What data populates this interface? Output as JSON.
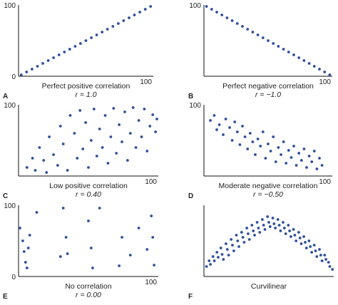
{
  "chart_data": [
    {
      "type": "scatter",
      "letter": "A",
      "caption": "Perfect positive correlation",
      "r_text": "r = 1.0",
      "ticks": {
        "x0": "0",
        "xmax": "100",
        "ymax": "100"
      },
      "xlim": [
        0,
        100
      ],
      "ylim": [
        0,
        100
      ],
      "points": [
        [
          2,
          2
        ],
        [
          6,
          6
        ],
        [
          10,
          10
        ],
        [
          14,
          14
        ],
        [
          18,
          18
        ],
        [
          22,
          22
        ],
        [
          26,
          26
        ],
        [
          30,
          30
        ],
        [
          34,
          34
        ],
        [
          38,
          38
        ],
        [
          42,
          42
        ],
        [
          46,
          46
        ],
        [
          50,
          50
        ],
        [
          54,
          54
        ],
        [
          58,
          58
        ],
        [
          62,
          62
        ],
        [
          66,
          66
        ],
        [
          70,
          70
        ],
        [
          74,
          74
        ],
        [
          78,
          78
        ],
        [
          82,
          82
        ],
        [
          86,
          86
        ],
        [
          90,
          90
        ],
        [
          94,
          94
        ],
        [
          98,
          98
        ]
      ]
    },
    {
      "type": "scatter",
      "letter": "B",
      "caption": "Perfect negative correlation",
      "r_text": "r = −1.0",
      "ticks": {
        "x0": "",
        "xmax": "100",
        "ymax": "100"
      },
      "xlim": [
        0,
        100
      ],
      "ylim": [
        0,
        100
      ],
      "points": [
        [
          2,
          98
        ],
        [
          6,
          94
        ],
        [
          10,
          90
        ],
        [
          14,
          86
        ],
        [
          18,
          82
        ],
        [
          22,
          78
        ],
        [
          26,
          74
        ],
        [
          30,
          70
        ],
        [
          34,
          66
        ],
        [
          38,
          62
        ],
        [
          42,
          58
        ],
        [
          46,
          54
        ],
        [
          50,
          50
        ],
        [
          54,
          46
        ],
        [
          58,
          42
        ],
        [
          62,
          38
        ],
        [
          66,
          34
        ],
        [
          70,
          30
        ],
        [
          74,
          26
        ],
        [
          78,
          22
        ],
        [
          82,
          18
        ],
        [
          86,
          14
        ],
        [
          90,
          10
        ],
        [
          94,
          6
        ],
        [
          98,
          2
        ]
      ]
    },
    {
      "type": "scatter",
      "letter": "C",
      "caption": "Low positive correlation",
      "r_text": "r = 0.40",
      "ticks": {
        "x0": "",
        "xmax": "100",
        "ymax": "100"
      },
      "xlim": [
        0,
        100
      ],
      "ylim": [
        0,
        100
      ],
      "points": [
        [
          6,
          12
        ],
        [
          10,
          25
        ],
        [
          12,
          8
        ],
        [
          15,
          40
        ],
        [
          18,
          22
        ],
        [
          20,
          5
        ],
        [
          22,
          55
        ],
        [
          25,
          30
        ],
        [
          28,
          15
        ],
        [
          30,
          70
        ],
        [
          32,
          45
        ],
        [
          35,
          8
        ],
        [
          37,
          85
        ],
        [
          40,
          60
        ],
        [
          42,
          25
        ],
        [
          44,
          92
        ],
        [
          46,
          38
        ],
        [
          48,
          75
        ],
        [
          50,
          12
        ],
        [
          52,
          50
        ],
        [
          54,
          94
        ],
        [
          56,
          28
        ],
        [
          58,
          66
        ],
        [
          60,
          40
        ],
        [
          62,
          85
        ],
        [
          64,
          18
        ],
        [
          66,
          55
        ],
        [
          68,
          95
        ],
        [
          70,
          32
        ],
        [
          72,
          72
        ],
        [
          74,
          48
        ],
        [
          76,
          90
        ],
        [
          78,
          22
        ],
        [
          80,
          60
        ],
        [
          82,
          96
        ],
        [
          84,
          40
        ],
        [
          86,
          78
        ],
        [
          88,
          55
        ],
        [
          90,
          94
        ],
        [
          92,
          35
        ],
        [
          94,
          70
        ],
        [
          96,
          86
        ],
        [
          98,
          62
        ],
        [
          99,
          80
        ]
      ]
    },
    {
      "type": "scatter",
      "letter": "D",
      "caption": "Moderate negative correlation",
      "r_text": "r = −0.50",
      "ticks": {
        "x0": "",
        "xmax": "100",
        "ymax": "100"
      },
      "xlim": [
        0,
        100
      ],
      "ylim": [
        0,
        100
      ],
      "points": [
        [
          5,
          78
        ],
        [
          8,
          85
        ],
        [
          10,
          65
        ],
        [
          12,
          72
        ],
        [
          15,
          58
        ],
        [
          17,
          80
        ],
        [
          20,
          68
        ],
        [
          22,
          50
        ],
        [
          24,
          76
        ],
        [
          26,
          62
        ],
        [
          28,
          44
        ],
        [
          30,
          70
        ],
        [
          32,
          55
        ],
        [
          34,
          38
        ],
        [
          36,
          60
        ],
        [
          38,
          48
        ],
        [
          40,
          30
        ],
        [
          42,
          52
        ],
        [
          44,
          42
        ],
        [
          46,
          62
        ],
        [
          48,
          25
        ],
        [
          50,
          45
        ],
        [
          52,
          35
        ],
        [
          54,
          55
        ],
        [
          56,
          20
        ],
        [
          58,
          40
        ],
        [
          60,
          30
        ],
        [
          62,
          48
        ],
        [
          64,
          18
        ],
        [
          66,
          36
        ],
        [
          68,
          26
        ],
        [
          70,
          42
        ],
        [
          72,
          15
        ],
        [
          74,
          32
        ],
        [
          76,
          22
        ],
        [
          78,
          38
        ],
        [
          80,
          12
        ],
        [
          82,
          28
        ],
        [
          84,
          20
        ],
        [
          86,
          35
        ],
        [
          88,
          10
        ],
        [
          90,
          25
        ],
        [
          92,
          15
        ]
      ]
    },
    {
      "type": "scatter",
      "letter": "E",
      "caption": "No correlation",
      "r_text": "r = 0.00",
      "ticks": {
        "x0": "0",
        "xmax": "100",
        "ymax": "100"
      },
      "xlim": [
        0,
        100
      ],
      "ylim": [
        0,
        100
      ],
      "points": [
        [
          1,
          68
        ],
        [
          3,
          50
        ],
        [
          4,
          35
        ],
        [
          5,
          20
        ],
        [
          6,
          12
        ],
        [
          7,
          40
        ],
        [
          8,
          58
        ],
        [
          13,
          90
        ],
        [
          30,
          28
        ],
        [
          32,
          96
        ],
        [
          34,
          55
        ],
        [
          35,
          32
        ],
        [
          50,
          78
        ],
        [
          52,
          40
        ],
        [
          53,
          12
        ],
        [
          58,
          96
        ],
        [
          72,
          15
        ],
        [
          74,
          55
        ],
        [
          80,
          30
        ],
        [
          86,
          68
        ],
        [
          92,
          38
        ],
        [
          95,
          85
        ],
        [
          96,
          55
        ],
        [
          97,
          16
        ]
      ]
    },
    {
      "type": "scatter",
      "letter": "F",
      "caption": "Curvilinear",
      "r_text": "",
      "ticks": {
        "x0": "",
        "xmax": "",
        "ymax": ""
      },
      "xlim": [
        0,
        100
      ],
      "ylim": [
        0,
        100
      ],
      "points": [
        [
          2,
          14
        ],
        [
          4,
          22
        ],
        [
          5,
          17
        ],
        [
          7,
          28
        ],
        [
          8,
          22
        ],
        [
          10,
          34
        ],
        [
          11,
          27
        ],
        [
          13,
          40
        ],
        [
          14,
          31
        ],
        [
          15,
          24
        ],
        [
          17,
          46
        ],
        [
          18,
          38
        ],
        [
          19,
          30
        ],
        [
          21,
          52
        ],
        [
          22,
          44
        ],
        [
          23,
          36
        ],
        [
          25,
          58
        ],
        [
          26,
          50
        ],
        [
          27,
          42
        ],
        [
          29,
          62
        ],
        [
          30,
          55
        ],
        [
          31,
          48
        ],
        [
          33,
          68
        ],
        [
          34,
          60
        ],
        [
          35,
          52
        ],
        [
          37,
          72
        ],
        [
          38,
          64
        ],
        [
          39,
          58
        ],
        [
          41,
          76
        ],
        [
          42,
          68
        ],
        [
          43,
          62
        ],
        [
          45,
          80
        ],
        [
          46,
          72
        ],
        [
          47,
          66
        ],
        [
          49,
          84
        ],
        [
          50,
          76
        ],
        [
          51,
          70
        ],
        [
          53,
          82
        ],
        [
          54,
          74
        ],
        [
          55,
          68
        ],
        [
          57,
          80
        ],
        [
          58,
          72
        ],
        [
          59,
          64
        ],
        [
          61,
          76
        ],
        [
          62,
          68
        ],
        [
          63,
          60
        ],
        [
          65,
          72
        ],
        [
          66,
          64
        ],
        [
          67,
          56
        ],
        [
          69,
          66
        ],
        [
          70,
          58
        ],
        [
          71,
          50
        ],
        [
          73,
          62
        ],
        [
          74,
          54
        ],
        [
          75,
          46
        ],
        [
          77,
          56
        ],
        [
          78,
          48
        ],
        [
          79,
          40
        ],
        [
          81,
          50
        ],
        [
          82,
          42
        ],
        [
          83,
          34
        ],
        [
          85,
          44
        ],
        [
          86,
          36
        ],
        [
          87,
          28
        ],
        [
          89,
          38
        ],
        [
          90,
          30
        ],
        [
          91,
          22
        ],
        [
          93,
          30
        ],
        [
          94,
          24
        ],
        [
          96,
          20
        ],
        [
          97,
          14
        ],
        [
          99,
          10
        ]
      ]
    }
  ]
}
